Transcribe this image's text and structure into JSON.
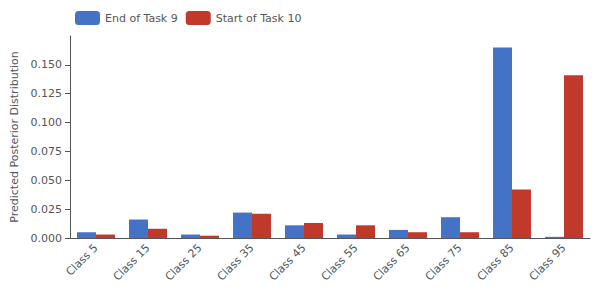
{
  "chart_data": {
    "type": "bar",
    "ylabel": "Predicted Posterior Distribution",
    "categories": [
      "Class 5",
      "Class 15",
      "Class 25",
      "Class 35",
      "Class 45",
      "Class 55",
      "Class 65",
      "Class 75",
      "Class 85",
      "Class 95"
    ],
    "series": [
      {
        "name": "End of Task 9",
        "color": "#4472C4",
        "values": [
          0.005,
          0.016,
          0.003,
          0.022,
          0.011,
          0.003,
          0.007,
          0.018,
          0.165,
          0.001
        ]
      },
      {
        "name": "Start of Task 10",
        "color": "#C0392B",
        "values": [
          0.003,
          0.008,
          0.002,
          0.021,
          0.013,
          0.011,
          0.005,
          0.005,
          0.042,
          0.141
        ]
      }
    ],
    "ylim": [
      0,
      0.175
    ],
    "yticks": [
      {
        "value": 0,
        "label": "0.000"
      },
      0.025,
      {
        "value": 0.05,
        "label": "0.050"
      },
      0.075,
      {
        "value": 0.1,
        "label": "0.100"
      },
      0.125,
      {
        "value": 0.15,
        "label": "0.150"
      }
    ],
    "grid": false,
    "legend": "upper left"
  }
}
